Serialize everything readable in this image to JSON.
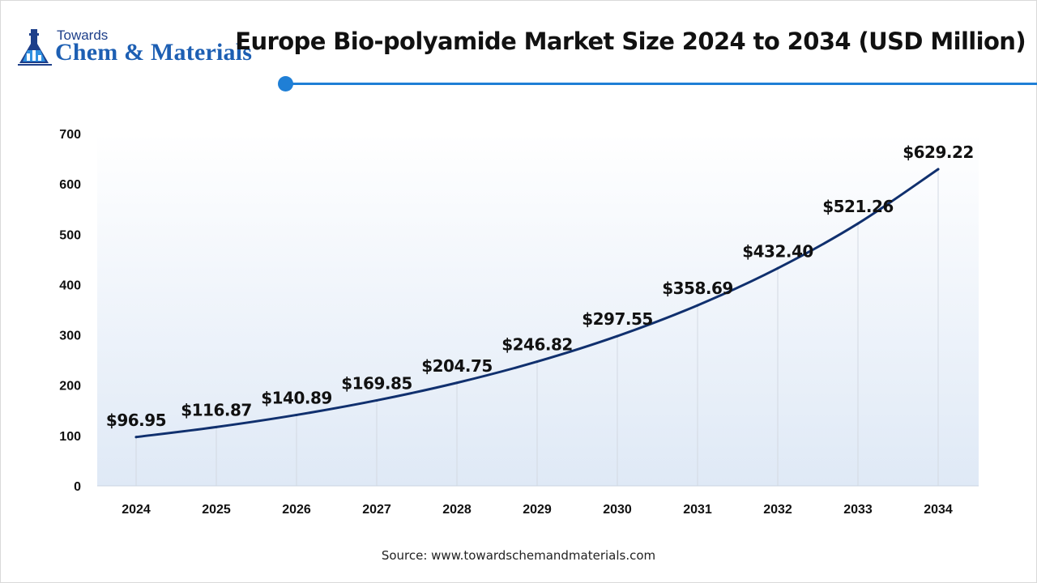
{
  "logo": {
    "line1": "Towards",
    "line2": "Chem & Materials",
    "icon": "flask-chart-icon"
  },
  "header": {
    "title": "Europe Bio-polyamide Market Size 2024 to 2034 (USD Million)"
  },
  "footer": {
    "source": "Source: www.towardschemandmaterials.com"
  },
  "colors": {
    "line": "#10306e",
    "accent": "#1f7fd6",
    "plot_gradient_top": "#ffffff",
    "plot_gradient_bottom": "#dfe9f6"
  },
  "chart_data": {
    "type": "line",
    "title": "Europe Bio-polyamide Market Size 2024 to 2034 (USD Million)",
    "categories": [
      "2024",
      "2025",
      "2026",
      "2027",
      "2028",
      "2029",
      "2030",
      "2031",
      "2032",
      "2033",
      "2034"
    ],
    "values": [
      96.95,
      116.87,
      140.89,
      169.85,
      204.75,
      246.82,
      297.55,
      358.69,
      432.4,
      521.26,
      629.22
    ],
    "data_labels": [
      "$96.95",
      "$116.87",
      "$140.89",
      "$169.85",
      "$204.75",
      "$246.82",
      "$297.55",
      "$358.69",
      "$432.40",
      "$521.26",
      "$629.22"
    ],
    "yticks": [
      "0",
      "100",
      "200",
      "300",
      "400",
      "500",
      "600",
      "700"
    ],
    "ylim": [
      0,
      700
    ],
    "xlabel": "",
    "ylabel": "",
    "grid": "vertical",
    "legend": "none"
  }
}
